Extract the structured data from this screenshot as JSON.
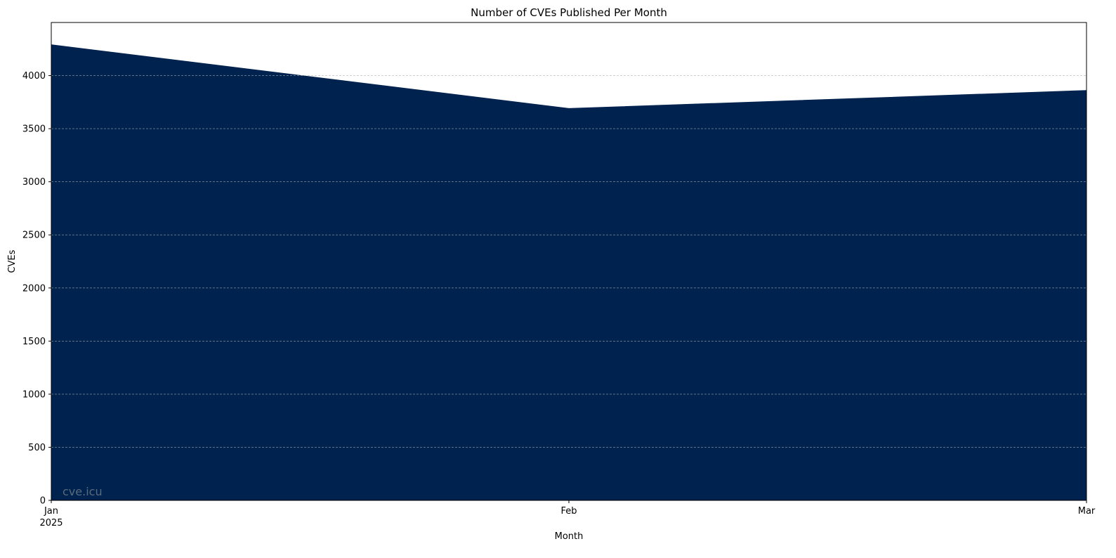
{
  "chart_data": {
    "type": "area",
    "title": "Number of CVEs Published Per Month",
    "xlabel": "Month",
    "ylabel": "CVEs",
    "x": [
      "2025-01",
      "2025-02",
      "2025-03"
    ],
    "x_tick_labels": [
      "Jan",
      "Feb",
      "Mar"
    ],
    "x_tick_sublabel": "2025",
    "series": [
      {
        "values": [
          4290,
          3690,
          3860
        ],
        "color": "#00224e"
      }
    ],
    "ylim": [
      0,
      4500
    ],
    "y_ticks": [
      0,
      500,
      1000,
      1500,
      2000,
      2500,
      3000,
      3500,
      4000
    ],
    "grid": "y, dashed",
    "grid_color": "#cccccc",
    "watermark": "cve.icu",
    "watermark_color": "#5a6b7d"
  }
}
